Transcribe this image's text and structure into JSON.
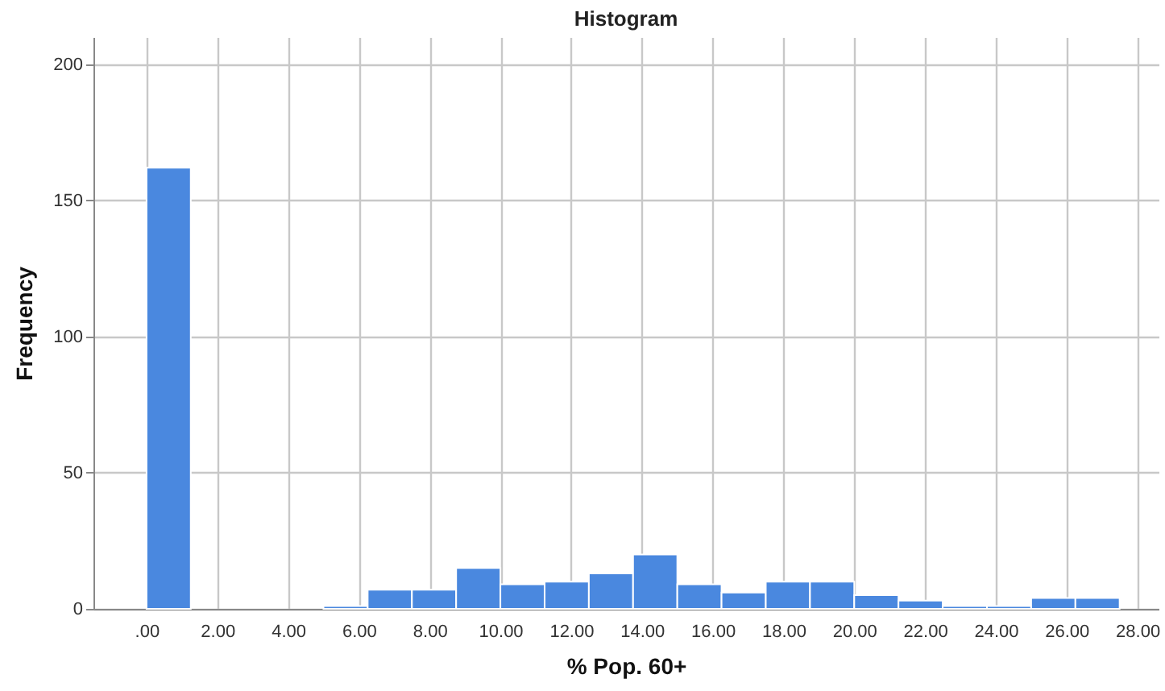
{
  "chart_data": {
    "type": "histogram",
    "title": "Histogram",
    "xlabel": "% Pop. 60+",
    "ylabel": "Frequency",
    "bins": [
      0,
      1.25,
      2.5,
      3.75,
      5,
      6.25,
      7.5,
      8.75,
      10,
      11.25,
      12.5,
      13.75,
      15,
      16.25,
      17.5,
      18.75,
      20,
      21.25,
      22.5,
      23.75,
      25,
      26.25,
      27.5
    ],
    "values": [
      162,
      0,
      0,
      0,
      1,
      7,
      7,
      15,
      9,
      10,
      13,
      20,
      9,
      6,
      10,
      10,
      5,
      3,
      1,
      1,
      4,
      4
    ],
    "color": "#4a88df",
    "xlim": [
      -1.5,
      28.6
    ],
    "xticks": [
      {
        "value": 0,
        "label": ".00"
      },
      {
        "value": 2,
        "label": "2.00"
      },
      {
        "value": 4,
        "label": "4.00"
      },
      {
        "value": 6,
        "label": "6.00"
      },
      {
        "value": 8,
        "label": "8.00"
      },
      {
        "value": 10,
        "label": "10.00"
      },
      {
        "value": 12,
        "label": "12.00"
      },
      {
        "value": 14,
        "label": "14.00"
      },
      {
        "value": 16,
        "label": "16.00"
      },
      {
        "value": 18,
        "label": "18.00"
      },
      {
        "value": 20,
        "label": "20.00"
      },
      {
        "value": 22,
        "label": "22.00"
      },
      {
        "value": 24,
        "label": "24.00"
      },
      {
        "value": 26,
        "label": "26.00"
      },
      {
        "value": 28,
        "label": "28.00"
      }
    ],
    "ylim": [
      0,
      210
    ],
    "yticks": [
      0,
      50,
      100,
      150,
      200
    ],
    "grid": true
  }
}
